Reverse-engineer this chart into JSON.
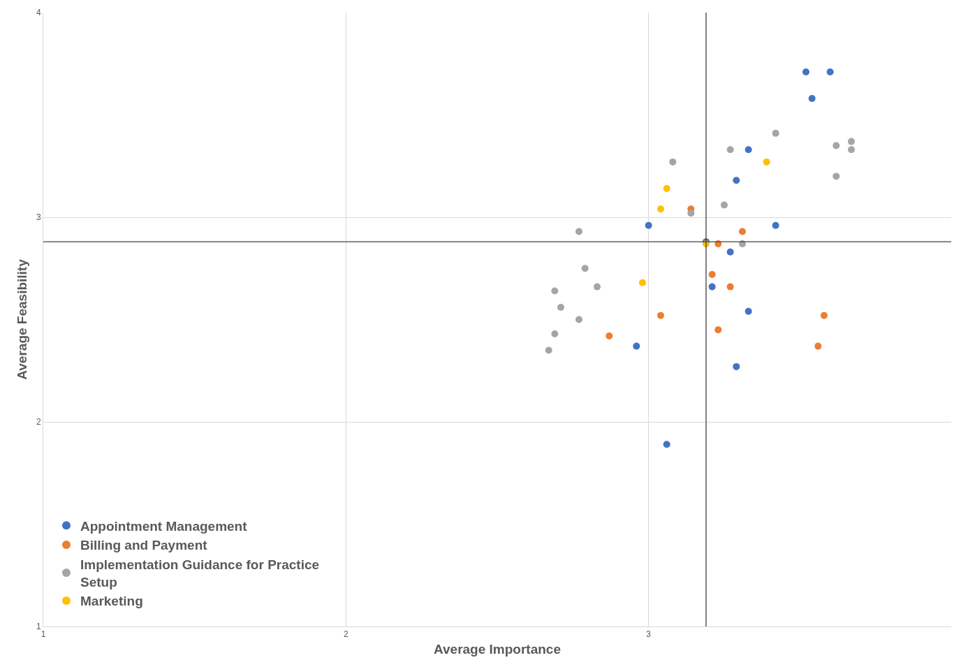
{
  "chart_data": {
    "type": "scatter",
    "xlabel": "Average Importance",
    "ylabel": "Average Feasibility",
    "xlim": [
      1,
      4
    ],
    "ylim": [
      1,
      4
    ],
    "xticks": [
      1,
      2,
      3
    ],
    "yticks": [
      1,
      2,
      3,
      4
    ],
    "grid": true,
    "legend": "bottom left",
    "marker": "circle",
    "series": [
      {
        "name": "Appointment Management",
        "color": "#4472c4",
        "x": [
          3.52,
          3.6,
          3.54,
          3.33,
          3.29,
          3.0,
          3.42,
          3.19,
          3.27,
          3.21,
          3.33,
          2.96,
          3.29,
          3.06
        ],
        "values": [
          3.71,
          3.71,
          3.58,
          3.33,
          3.18,
          2.96,
          2.96,
          2.88,
          2.83,
          2.66,
          2.54,
          2.37,
          2.27,
          1.89
        ]
      },
      {
        "name": "Billing and Payment",
        "color": "#ed7d31",
        "x": [
          3.14,
          3.31,
          3.23,
          3.21,
          3.27,
          3.04,
          3.58,
          3.23,
          2.87,
          3.56
        ],
        "values": [
          3.04,
          2.93,
          2.87,
          2.72,
          2.66,
          2.52,
          2.52,
          2.45,
          2.42,
          2.37
        ]
      },
      {
        "name": "Implementation Guidance for Practice Setup",
        "color": "#a5a5a5",
        "x": [
          3.42,
          3.67,
          3.62,
          3.67,
          3.27,
          3.08,
          3.62,
          3.25,
          3.14,
          2.77,
          3.31,
          2.79,
          2.83,
          2.69,
          2.71,
          2.77,
          2.69,
          2.67
        ],
        "values": [
          3.41,
          3.37,
          3.35,
          3.33,
          3.33,
          3.27,
          3.2,
          3.06,
          3.02,
          2.93,
          2.87,
          2.75,
          2.66,
          2.64,
          2.56,
          2.5,
          2.43,
          2.35
        ]
      },
      {
        "name": "Marketing",
        "color": "#ffc000",
        "x": [
          3.39,
          3.06,
          3.04,
          2.98,
          3.19
        ],
        "values": [
          3.27,
          3.14,
          3.04,
          2.68,
          2.87
        ]
      }
    ],
    "ref_lines": [
      {
        "axis": "x",
        "value": 3.19,
        "color": "#404040"
      },
      {
        "axis": "y",
        "value": 2.88,
        "color": "#404040"
      }
    ]
  }
}
